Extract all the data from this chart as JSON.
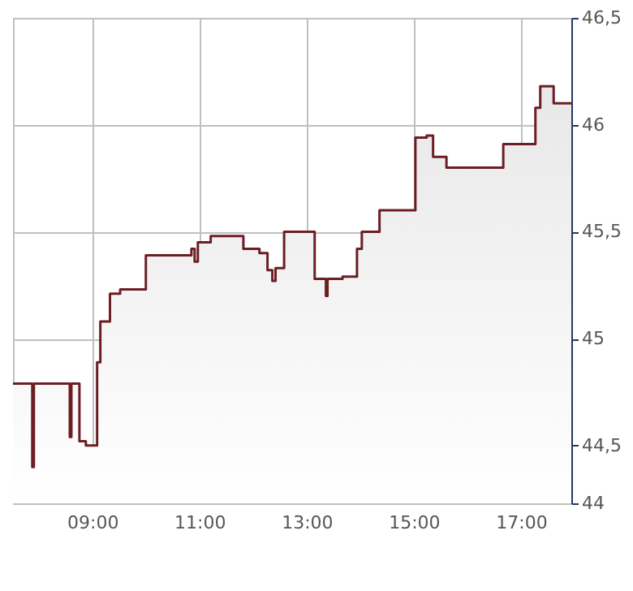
{
  "chart_data": {
    "type": "area",
    "x": [
      7.52,
      7.88,
      7.88,
      7.91,
      7.91,
      8.58,
      8.58,
      8.61,
      8.61,
      8.76,
      8.76,
      8.88,
      8.88,
      9.09,
      9.09,
      9.15,
      9.15,
      9.33,
      9.33,
      9.52,
      9.52,
      10.0,
      10.0,
      10.85,
      10.85,
      10.91,
      10.91,
      10.97,
      10.97,
      11.21,
      11.21,
      11.82,
      11.82,
      12.12,
      12.12,
      12.27,
      12.27,
      12.36,
      12.36,
      12.42,
      12.42,
      12.58,
      12.58,
      13.15,
      13.15,
      13.36,
      13.36,
      13.39,
      13.39,
      13.67,
      13.67,
      13.94,
      13.94,
      14.03,
      14.03,
      14.36,
      14.36,
      15.03,
      15.03,
      15.24,
      15.24,
      15.36,
      15.36,
      15.61,
      15.61,
      16.67,
      16.67,
      17.27,
      17.27,
      17.36,
      17.36,
      17.61,
      17.61,
      17.94
    ],
    "series": [
      {
        "color": "#6b1f24",
        "values": [
          44.79,
          44.79,
          44.4,
          44.4,
          44.79,
          44.79,
          44.54,
          44.54,
          44.79,
          44.79,
          44.52,
          44.52,
          44.5,
          44.5,
          44.89,
          44.89,
          45.08,
          45.08,
          45.21,
          45.21,
          45.23,
          45.23,
          45.39,
          45.39,
          45.42,
          45.42,
          45.36,
          45.36,
          45.45,
          45.45,
          45.48,
          45.48,
          45.42,
          45.42,
          45.4,
          45.4,
          45.32,
          45.32,
          45.27,
          45.27,
          45.33,
          45.33,
          45.5,
          45.5,
          45.28,
          45.28,
          45.2,
          45.2,
          45.28,
          45.28,
          45.29,
          45.29,
          45.42,
          45.42,
          45.5,
          45.5,
          45.6,
          45.6,
          45.94,
          45.94,
          45.95,
          45.95,
          45.85,
          45.85,
          45.8,
          45.8,
          45.91,
          45.91,
          46.08,
          46.08,
          46.18,
          46.18,
          46.1,
          46.1
        ]
      }
    ],
    "xlim": [
      7.52,
      17.94
    ],
    "xticks": [
      {
        "value": 9,
        "label": "09:00"
      },
      {
        "value": 11,
        "label": "11:00"
      },
      {
        "value": 13,
        "label": "13:00"
      },
      {
        "value": 15,
        "label": "15:00"
      },
      {
        "value": 17,
        "label": "17:00"
      }
    ],
    "ylim": [
      44.23,
      46.5
    ],
    "yticks": [
      {
        "value": 44.23,
        "label": "44"
      },
      {
        "value": 44.5,
        "label": "44,5"
      },
      {
        "value": 45,
        "label": "45"
      },
      {
        "value": 45.5,
        "label": "45,5"
      },
      {
        "value": 46,
        "label": "46"
      },
      {
        "value": 46.5,
        "label": "46,5"
      }
    ],
    "grid": true
  }
}
